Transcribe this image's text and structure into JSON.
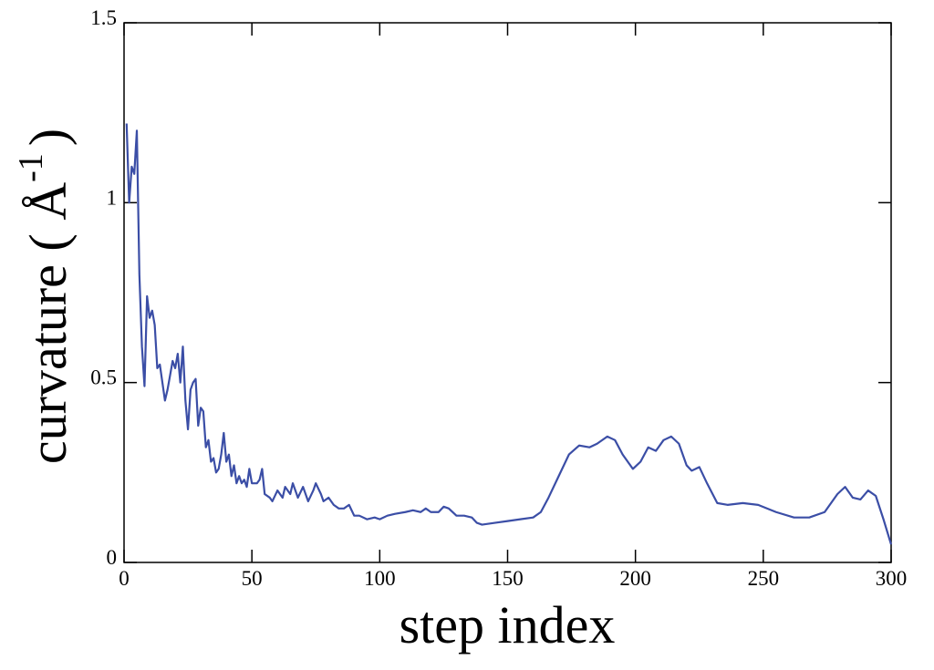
{
  "chart_data": {
    "type": "line",
    "xlabel": "step index",
    "ylabel": {
      "text": "curvature ( Å",
      "superscript": "-1",
      "close": ")"
    },
    "xlim": [
      0,
      300
    ],
    "ylim": [
      0,
      1.5
    ],
    "xticks": [
      0,
      50,
      100,
      150,
      200,
      250,
      300
    ],
    "yticks": [
      0,
      0.5,
      1,
      1.5
    ],
    "series": [
      {
        "color": "#3b4ea6",
        "x": [
          1,
          2,
          3,
          4,
          5,
          6,
          7,
          8,
          9,
          10,
          11,
          12,
          13,
          14,
          15,
          16,
          17,
          18,
          19,
          20,
          21,
          22,
          23,
          24,
          25,
          26,
          27,
          28,
          29,
          30,
          31,
          32,
          33,
          34,
          35,
          36,
          37,
          38,
          39,
          40,
          41,
          42,
          43,
          44,
          45,
          46,
          47,
          48,
          49,
          50,
          52,
          53,
          54,
          55,
          57,
          58,
          60,
          62,
          63,
          65,
          66,
          68,
          70,
          72,
          74,
          75,
          77,
          78,
          80,
          82,
          84,
          86,
          88,
          90,
          92,
          95,
          98,
          100,
          103,
          106,
          110,
          113,
          116,
          118,
          120,
          123,
          125,
          127,
          130,
          133,
          136,
          138,
          140,
          145,
          150,
          155,
          160,
          163,
          166,
          170,
          174,
          178,
          182,
          185,
          189,
          192,
          195,
          199,
          202,
          205,
          208,
          211,
          214,
          217,
          220,
          222,
          225,
          228,
          232,
          236,
          242,
          248,
          255,
          262,
          268,
          274,
          279,
          282,
          285,
          288,
          291,
          294,
          297,
          300
        ],
        "values": [
          1.22,
          1.0,
          1.1,
          1.08,
          1.2,
          0.8,
          0.6,
          0.49,
          0.74,
          0.68,
          0.7,
          0.66,
          0.54,
          0.55,
          0.5,
          0.45,
          0.48,
          0.52,
          0.56,
          0.54,
          0.58,
          0.5,
          0.6,
          0.45,
          0.37,
          0.48,
          0.5,
          0.51,
          0.38,
          0.43,
          0.42,
          0.32,
          0.34,
          0.28,
          0.29,
          0.25,
          0.26,
          0.3,
          0.36,
          0.28,
          0.3,
          0.24,
          0.27,
          0.22,
          0.24,
          0.22,
          0.23,
          0.21,
          0.26,
          0.22,
          0.22,
          0.23,
          0.26,
          0.19,
          0.18,
          0.17,
          0.2,
          0.18,
          0.21,
          0.19,
          0.22,
          0.18,
          0.21,
          0.17,
          0.2,
          0.22,
          0.19,
          0.17,
          0.18,
          0.16,
          0.15,
          0.15,
          0.16,
          0.13,
          0.13,
          0.12,
          0.125,
          0.12,
          0.13,
          0.135,
          0.14,
          0.145,
          0.14,
          0.15,
          0.14,
          0.14,
          0.155,
          0.15,
          0.13,
          0.13,
          0.125,
          0.11,
          0.105,
          0.11,
          0.115,
          0.12,
          0.125,
          0.14,
          0.18,
          0.24,
          0.3,
          0.325,
          0.32,
          0.33,
          0.35,
          0.34,
          0.3,
          0.26,
          0.28,
          0.32,
          0.31,
          0.34,
          0.35,
          0.33,
          0.27,
          0.255,
          0.265,
          0.22,
          0.165,
          0.16,
          0.165,
          0.16,
          0.14,
          0.125,
          0.125,
          0.14,
          0.19,
          0.21,
          0.18,
          0.175,
          0.2,
          0.185,
          0.12,
          0.05
        ]
      }
    ]
  }
}
